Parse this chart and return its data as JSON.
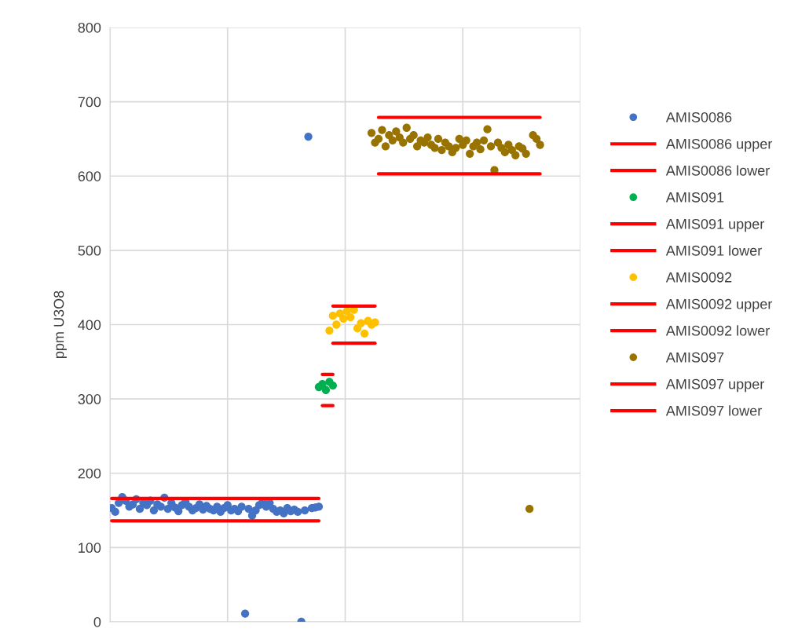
{
  "chart_data": {
    "type": "scatter",
    "ylabel": "ppm U3O8",
    "ylim": [
      0,
      800
    ],
    "yticks": [
      0,
      100,
      200,
      300,
      400,
      500,
      600,
      700,
      800
    ],
    "grid": true,
    "legend": "right",
    "categories": [
      null,
      null,
      null,
      null,
      null,
      null,
      null,
      null,
      null,
      null,
      null,
      null,
      null,
      null,
      null,
      null,
      null,
      null,
      null,
      null,
      null,
      null,
      null,
      null,
      null,
      null,
      null,
      null,
      null,
      null,
      null,
      null,
      null,
      null,
      null,
      null,
      null,
      null,
      null,
      null,
      null,
      null,
      null,
      null,
      null,
      null,
      null,
      null,
      null,
      null,
      null,
      null,
      null,
      null,
      null,
      null,
      null,
      null,
      null,
      null,
      null,
      null,
      null,
      null,
      null,
      null,
      null,
      null,
      null,
      null,
      null,
      null,
      null,
      null,
      null,
      null,
      null,
      null,
      null,
      null,
      null,
      null,
      null,
      null,
      null,
      null,
      null,
      null,
      null,
      null,
      null,
      null,
      null,
      null,
      null,
      null,
      null,
      null,
      null,
      null,
      null,
      null,
      null,
      null,
      null,
      null,
      null,
      null,
      null,
      null,
      null,
      null,
      null,
      null,
      null,
      null,
      null,
      null,
      null,
      null,
      null,
      null,
      null,
      null,
      null,
      null,
      null,
      null,
      null,
      null,
      null,
      null,
      null,
      null
    ],
    "series": [
      {
        "name": "AMIS0086",
        "color": "#4472c4",
        "values": [
          153,
          148,
          160,
          168,
          163,
          155,
          158,
          165,
          152,
          160,
          157,
          163,
          150,
          158,
          155,
          167,
          152,
          160,
          154,
          149,
          157,
          162,
          155,
          150,
          153,
          158,
          151,
          156,
          152,
          150,
          155,
          148,
          153,
          157,
          150,
          152,
          149,
          155,
          11,
          152,
          143,
          150,
          157,
          162,
          155,
          160,
          152,
          148,
          150,
          146,
          153,
          149,
          151,
          148,
          0,
          150,
          653,
          153,
          154,
          155,
          null,
          null,
          null,
          null,
          null,
          null,
          null,
          null,
          null,
          null,
          null,
          null,
          null,
          null,
          null,
          null,
          null,
          null,
          null,
          null,
          null,
          null,
          null,
          null,
          null,
          null,
          null,
          null,
          null,
          null,
          null,
          null,
          null,
          null,
          null,
          null,
          null,
          null,
          null,
          null,
          null,
          null,
          null,
          null,
          null,
          null,
          null,
          null,
          null,
          null,
          null,
          null,
          null,
          null,
          null,
          null,
          null,
          null,
          null,
          null,
          null,
          null,
          null,
          null,
          null,
          null,
          null,
          null,
          null,
          null,
          null,
          null,
          null,
          null
        ]
      },
      {
        "name": "AMIS0086 upper",
        "type": "line",
        "color": "#ff0000",
        "values": [
          166,
          166,
          166,
          166,
          166,
          166,
          166,
          166,
          166,
          166,
          166,
          166,
          166,
          166,
          166,
          166,
          166,
          166,
          166,
          166,
          166,
          166,
          166,
          166,
          166,
          166,
          166,
          166,
          166,
          166,
          166,
          166,
          166,
          166,
          166,
          166,
          166,
          166,
          166,
          166,
          166,
          166,
          166,
          166,
          166,
          166,
          166,
          166,
          166,
          166,
          166,
          166,
          166,
          166,
          166,
          166,
          166,
          166,
          166,
          166,
          null,
          null,
          null,
          null,
          null,
          null,
          null,
          null,
          null,
          null,
          null,
          null,
          null,
          null,
          null,
          null,
          null,
          null,
          null,
          null,
          null,
          null,
          null,
          null,
          null,
          null,
          null,
          null,
          null,
          null,
          null,
          null,
          null,
          null,
          null,
          null,
          null,
          null,
          null,
          null,
          null,
          null,
          null,
          null,
          null,
          null,
          null,
          null,
          null,
          null,
          null,
          null,
          null,
          null,
          null,
          null,
          null,
          null,
          null,
          null,
          null,
          null,
          null,
          null,
          null,
          null,
          null,
          null,
          null,
          null,
          null,
          null,
          null,
          null
        ]
      },
      {
        "name": "AMIS0086 lower",
        "type": "line",
        "color": "#ff0000",
        "values": [
          136,
          136,
          136,
          136,
          136,
          136,
          136,
          136,
          136,
          136,
          136,
          136,
          136,
          136,
          136,
          136,
          136,
          136,
          136,
          136,
          136,
          136,
          136,
          136,
          136,
          136,
          136,
          136,
          136,
          136,
          136,
          136,
          136,
          136,
          136,
          136,
          136,
          136,
          136,
          136,
          136,
          136,
          136,
          136,
          136,
          136,
          136,
          136,
          136,
          136,
          136,
          136,
          136,
          136,
          136,
          136,
          136,
          136,
          136,
          136,
          null,
          null,
          null,
          null,
          null,
          null,
          null,
          null,
          null,
          null,
          null,
          null,
          null,
          null,
          null,
          null,
          null,
          null,
          null,
          null,
          null,
          null,
          null,
          null,
          null,
          null,
          null,
          null,
          null,
          null,
          null,
          null,
          null,
          null,
          null,
          null,
          null,
          null,
          null,
          null,
          null,
          null,
          null,
          null,
          null,
          null,
          null,
          null,
          null,
          null,
          null,
          null,
          null,
          null,
          null,
          null,
          null,
          null,
          null,
          null,
          null,
          null,
          null,
          null,
          null,
          null,
          null,
          null,
          null,
          null,
          null,
          null,
          null,
          null
        ]
      },
      {
        "name": "AMIS091",
        "color": "#00b050",
        "values": [
          null,
          null,
          null,
          null,
          null,
          null,
          null,
          null,
          null,
          null,
          null,
          null,
          null,
          null,
          null,
          null,
          null,
          null,
          null,
          null,
          null,
          null,
          null,
          null,
          null,
          null,
          null,
          null,
          null,
          null,
          null,
          null,
          null,
          null,
          null,
          null,
          null,
          null,
          null,
          null,
          null,
          null,
          null,
          null,
          null,
          null,
          null,
          null,
          null,
          null,
          null,
          null,
          null,
          null,
          null,
          null,
          null,
          null,
          null,
          316,
          320,
          312,
          323,
          318,
          null,
          null,
          null,
          null,
          null,
          null,
          null,
          null,
          null,
          null,
          null,
          null,
          null,
          null,
          null,
          null,
          null,
          null,
          null,
          null,
          null,
          null,
          null,
          null,
          null,
          null,
          null,
          null,
          null,
          null,
          null,
          null,
          null,
          null,
          null,
          null,
          null,
          null,
          null,
          null,
          null,
          null,
          null,
          null,
          null,
          null,
          null,
          null,
          null,
          null,
          null,
          null,
          null,
          null,
          null,
          null,
          null,
          null,
          null,
          null,
          null,
          null,
          null,
          null,
          null,
          null,
          null,
          null,
          null,
          null
        ]
      },
      {
        "name": "AMIS091 upper",
        "type": "line",
        "color": "#ff0000",
        "values": [
          null,
          null,
          null,
          null,
          null,
          null,
          null,
          null,
          null,
          null,
          null,
          null,
          null,
          null,
          null,
          null,
          null,
          null,
          null,
          null,
          null,
          null,
          null,
          null,
          null,
          null,
          null,
          null,
          null,
          null,
          null,
          null,
          null,
          null,
          null,
          null,
          null,
          null,
          null,
          null,
          null,
          null,
          null,
          null,
          null,
          null,
          null,
          null,
          null,
          null,
          null,
          null,
          null,
          null,
          null,
          null,
          null,
          null,
          null,
          null,
          333,
          333,
          333,
          333,
          null,
          null,
          null,
          null,
          null,
          null,
          null,
          null,
          null,
          null,
          null,
          null,
          null,
          null,
          null,
          null,
          null,
          null,
          null,
          null,
          null,
          null,
          null,
          null,
          null,
          null,
          null,
          null,
          null,
          null,
          null,
          null,
          null,
          null,
          null,
          null,
          null,
          null,
          null,
          null,
          null,
          null,
          null,
          null,
          null,
          null,
          null,
          null,
          null,
          null,
          null,
          null,
          null,
          null,
          null,
          null,
          null,
          null,
          null,
          null,
          null,
          null,
          null,
          null,
          null,
          null,
          null,
          null,
          null,
          null
        ]
      },
      {
        "name": "AMIS091 lower",
        "type": "line",
        "color": "#ff0000",
        "values": [
          null,
          null,
          null,
          null,
          null,
          null,
          null,
          null,
          null,
          null,
          null,
          null,
          null,
          null,
          null,
          null,
          null,
          null,
          null,
          null,
          null,
          null,
          null,
          null,
          null,
          null,
          null,
          null,
          null,
          null,
          null,
          null,
          null,
          null,
          null,
          null,
          null,
          null,
          null,
          null,
          null,
          null,
          null,
          null,
          null,
          null,
          null,
          null,
          null,
          null,
          null,
          null,
          null,
          null,
          null,
          null,
          null,
          null,
          null,
          null,
          291,
          291,
          291,
          291,
          null,
          null,
          null,
          null,
          null,
          null,
          null,
          null,
          null,
          null,
          null,
          null,
          null,
          null,
          null,
          null,
          null,
          null,
          null,
          null,
          null,
          null,
          null,
          null,
          null,
          null,
          null,
          null,
          null,
          null,
          null,
          null,
          null,
          null,
          null,
          null,
          null,
          null,
          null,
          null,
          null,
          null,
          null,
          null,
          null,
          null,
          null,
          null,
          null,
          null,
          null,
          null,
          null,
          null,
          null,
          null,
          null,
          null,
          null,
          null,
          null,
          null,
          null,
          null,
          null,
          null,
          null,
          null,
          null,
          null
        ]
      },
      {
        "name": "AMIS0092",
        "color": "#ffc000",
        "values": [
          null,
          null,
          null,
          null,
          null,
          null,
          null,
          null,
          null,
          null,
          null,
          null,
          null,
          null,
          null,
          null,
          null,
          null,
          null,
          null,
          null,
          null,
          null,
          null,
          null,
          null,
          null,
          null,
          null,
          null,
          null,
          null,
          null,
          null,
          null,
          null,
          null,
          null,
          null,
          null,
          null,
          null,
          null,
          null,
          null,
          null,
          null,
          null,
          null,
          null,
          null,
          null,
          null,
          null,
          null,
          null,
          null,
          null,
          null,
          null,
          null,
          null,
          392,
          412,
          400,
          415,
          408,
          418,
          410,
          420,
          395,
          402,
          388,
          405,
          400,
          403,
          null,
          null,
          null,
          null,
          null,
          null,
          null,
          null,
          null,
          null,
          null,
          null,
          null,
          null,
          null,
          null,
          null,
          null,
          null,
          null,
          null,
          null,
          null,
          null,
          null,
          null,
          null,
          null,
          null,
          null,
          null,
          null,
          null,
          null,
          null,
          null,
          null,
          null,
          null,
          null,
          null,
          null,
          null,
          null,
          null,
          null,
          null,
          null,
          null,
          null,
          null,
          null,
          null,
          null,
          null,
          null,
          null,
          null
        ]
      },
      {
        "name": "AMIS0092 upper",
        "type": "line",
        "color": "#ff0000",
        "values": [
          null,
          null,
          null,
          null,
          null,
          null,
          null,
          null,
          null,
          null,
          null,
          null,
          null,
          null,
          null,
          null,
          null,
          null,
          null,
          null,
          null,
          null,
          null,
          null,
          null,
          null,
          null,
          null,
          null,
          null,
          null,
          null,
          null,
          null,
          null,
          null,
          null,
          null,
          null,
          null,
          null,
          null,
          null,
          null,
          null,
          null,
          null,
          null,
          null,
          null,
          null,
          null,
          null,
          null,
          null,
          null,
          null,
          null,
          null,
          null,
          null,
          null,
          null,
          425,
          425,
          425,
          425,
          425,
          425,
          425,
          425,
          425,
          425,
          425,
          425,
          425,
          null,
          null,
          null,
          null,
          null,
          null,
          null,
          null,
          null,
          null,
          null,
          null,
          null,
          null,
          null,
          null,
          null,
          null,
          null,
          null,
          null,
          null,
          null,
          null,
          null,
          null,
          null,
          null,
          null,
          null,
          null,
          null,
          null,
          null,
          null,
          null,
          null,
          null,
          null,
          null,
          null,
          null,
          null,
          null,
          null,
          null,
          null,
          null,
          null,
          null,
          null,
          null,
          null,
          null,
          null,
          null,
          null,
          null
        ]
      },
      {
        "name": "AMIS0092 lower",
        "type": "line",
        "color": "#ff0000",
        "values": [
          null,
          null,
          null,
          null,
          null,
          null,
          null,
          null,
          null,
          null,
          null,
          null,
          null,
          null,
          null,
          null,
          null,
          null,
          null,
          null,
          null,
          null,
          null,
          null,
          null,
          null,
          null,
          null,
          null,
          null,
          null,
          null,
          null,
          null,
          null,
          null,
          null,
          null,
          null,
          null,
          null,
          null,
          null,
          null,
          null,
          null,
          null,
          null,
          null,
          null,
          null,
          null,
          null,
          null,
          null,
          null,
          null,
          null,
          null,
          null,
          null,
          null,
          null,
          375,
          375,
          375,
          375,
          375,
          375,
          375,
          375,
          375,
          375,
          375,
          375,
          375,
          null,
          null,
          null,
          null,
          null,
          null,
          null,
          null,
          null,
          null,
          null,
          null,
          null,
          null,
          null,
          null,
          null,
          null,
          null,
          null,
          null,
          null,
          null,
          null,
          null,
          null,
          null,
          null,
          null,
          null,
          null,
          null,
          null,
          null,
          null,
          null,
          null,
          null,
          null,
          null,
          null,
          null,
          null,
          null,
          null,
          null,
          null,
          null,
          null,
          null,
          null,
          null,
          null,
          null,
          null,
          null,
          null,
          null
        ]
      },
      {
        "name": "AMIS097",
        "color": "#997300",
        "values": [
          null,
          null,
          null,
          null,
          null,
          null,
          null,
          null,
          null,
          null,
          null,
          null,
          null,
          null,
          null,
          null,
          null,
          null,
          null,
          null,
          null,
          null,
          null,
          null,
          null,
          null,
          null,
          null,
          null,
          null,
          null,
          null,
          null,
          null,
          null,
          null,
          null,
          null,
          null,
          null,
          null,
          null,
          null,
          null,
          null,
          null,
          null,
          null,
          null,
          null,
          null,
          null,
          null,
          null,
          null,
          null,
          null,
          null,
          null,
          null,
          null,
          null,
          null,
          null,
          null,
          null,
          null,
          null,
          null,
          null,
          null,
          null,
          null,
          null,
          658,
          645,
          650,
          662,
          640,
          655,
          648,
          660,
          652,
          645,
          665,
          650,
          655,
          640,
          648,
          645,
          652,
          642,
          638,
          650,
          635,
          645,
          640,
          632,
          638,
          650,
          642,
          648,
          630,
          640,
          645,
          636,
          648,
          663,
          640,
          608,
          645,
          638,
          632,
          642,
          635,
          628,
          640,
          637,
          630,
          152,
          655,
          650,
          642,
          null,
          null,
          null,
          null,
          null,
          null,
          null,
          null,
          null,
          null,
          null
        ]
      },
      {
        "name": "AMIS097 upper",
        "type": "line",
        "color": "#ff0000",
        "values": [
          null,
          null,
          null,
          null,
          null,
          null,
          null,
          null,
          null,
          null,
          null,
          null,
          null,
          null,
          null,
          null,
          null,
          null,
          null,
          null,
          null,
          null,
          null,
          null,
          null,
          null,
          null,
          null,
          null,
          null,
          null,
          null,
          null,
          null,
          null,
          null,
          null,
          null,
          null,
          null,
          null,
          null,
          null,
          null,
          null,
          null,
          null,
          null,
          null,
          null,
          null,
          null,
          null,
          null,
          null,
          null,
          null,
          null,
          null,
          null,
          null,
          null,
          null,
          null,
          null,
          null,
          null,
          null,
          null,
          null,
          null,
          null,
          null,
          null,
          null,
          null,
          679,
          679,
          679,
          679,
          679,
          679,
          679,
          679,
          679,
          679,
          679,
          679,
          679,
          679,
          679,
          679,
          679,
          679,
          679,
          679,
          679,
          679,
          679,
          679,
          679,
          679,
          679,
          679,
          679,
          679,
          679,
          679,
          679,
          679,
          679,
          679,
          679,
          679,
          679,
          679,
          679,
          679,
          679,
          679,
          679,
          679,
          679,
          null,
          null,
          null,
          null,
          null,
          null,
          null,
          null,
          null,
          null,
          null
        ]
      },
      {
        "name": "AMIS097 lower",
        "type": "line",
        "color": "#ff0000",
        "values": [
          null,
          null,
          null,
          null,
          null,
          null,
          null,
          null,
          null,
          null,
          null,
          null,
          null,
          null,
          null,
          null,
          null,
          null,
          null,
          null,
          null,
          null,
          null,
          null,
          null,
          null,
          null,
          null,
          null,
          null,
          null,
          null,
          null,
          null,
          null,
          null,
          null,
          null,
          null,
          null,
          null,
          null,
          null,
          null,
          null,
          null,
          null,
          null,
          null,
          null,
          null,
          null,
          null,
          null,
          null,
          null,
          null,
          null,
          null,
          null,
          null,
          null,
          null,
          null,
          null,
          null,
          null,
          null,
          null,
          null,
          null,
          null,
          null,
          null,
          null,
          null,
          603,
          603,
          603,
          603,
          603,
          603,
          603,
          603,
          603,
          603,
          603,
          603,
          603,
          603,
          603,
          603,
          603,
          603,
          603,
          603,
          603,
          603,
          603,
          603,
          603,
          603,
          603,
          603,
          603,
          603,
          603,
          603,
          603,
          603,
          603,
          603,
          603,
          603,
          603,
          603,
          603,
          603,
          603,
          603,
          603,
          603,
          603,
          null,
          null,
          null,
          null,
          null,
          null,
          null,
          null,
          null,
          null,
          null
        ]
      }
    ]
  }
}
